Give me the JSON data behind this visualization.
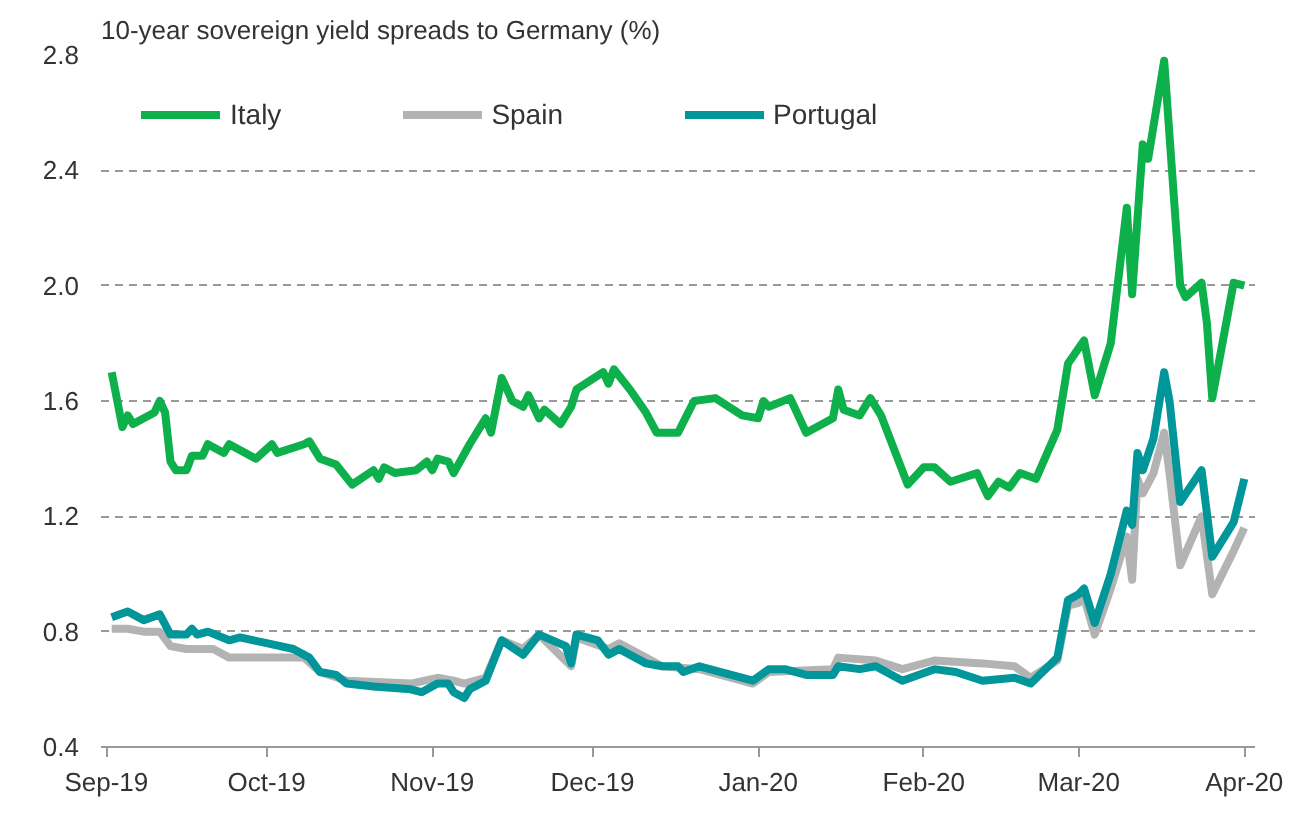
{
  "chart_data": {
    "type": "line",
    "title": "10-year sovereign  yield spreads to Germany  (%)",
    "xlim": [
      "2019-08-31",
      "2020-04-03"
    ],
    "xticks": [
      {
        "value": "2019-09-01",
        "label": "Sep-19"
      },
      {
        "value": "2019-10-01",
        "label": "Oct-19"
      },
      {
        "value": "2019-11-01",
        "label": "Nov-19"
      },
      {
        "value": "2019-12-01",
        "label": "Dec-19"
      },
      {
        "value": "2020-01-01",
        "label": "Jan-20"
      },
      {
        "value": "2020-02-01",
        "label": "Feb-20"
      },
      {
        "value": "2020-03-01",
        "label": "Mar-20"
      },
      {
        "value": "2020-04-01",
        "label": "Apr-20"
      }
    ],
    "ylim": [
      0.4,
      2.8
    ],
    "yticks": [
      {
        "value": 0.4,
        "label": "0.4"
      },
      {
        "value": 0.8,
        "label": "0.8"
      },
      {
        "value": 1.2,
        "label": "1.2"
      },
      {
        "value": 1.6,
        "label": "1.6"
      },
      {
        "value": 2.0,
        "label": "2.0"
      },
      {
        "value": 2.4,
        "label": "2.4"
      },
      {
        "value": 2.8,
        "label": "2.8"
      }
    ],
    "grid": "y",
    "legend": "top left",
    "marker": "none",
    "line_style": "solid",
    "series": [
      {
        "name": "Italy",
        "color": "#0db04b",
        "x": [
          "2019-09-02",
          "2019-09-04",
          "2019-09-05",
          "2019-09-06",
          "2019-09-10",
          "2019-09-11",
          "2019-09-12",
          "2019-09-13",
          "2019-09-14",
          "2019-09-16",
          "2019-09-17",
          "2019-09-19",
          "2019-09-20",
          "2019-09-23",
          "2019-09-24",
          "2019-09-29",
          "2019-10-02",
          "2019-10-03",
          "2019-10-08",
          "2019-10-09",
          "2019-10-11",
          "2019-10-14",
          "2019-10-17",
          "2019-10-21",
          "2019-10-22",
          "2019-10-23",
          "2019-10-25",
          "2019-10-29",
          "2019-10-31",
          "2019-11-01",
          "2019-11-02",
          "2019-11-04",
          "2019-11-05",
          "2019-11-08",
          "2019-11-11",
          "2019-11-12",
          "2019-11-14",
          "2019-11-16",
          "2019-11-18",
          "2019-11-19",
          "2019-11-21",
          "2019-11-22",
          "2019-11-25",
          "2019-11-27",
          "2019-11-28",
          "2019-12-03",
          "2019-12-04",
          "2019-12-05",
          "2019-12-08",
          "2019-12-11",
          "2019-12-13",
          "2019-12-17",
          "2019-12-20",
          "2019-12-24",
          "2019-12-29",
          "2020-01-01",
          "2020-01-02",
          "2020-01-03",
          "2020-01-07",
          "2020-01-10",
          "2020-01-15",
          "2020-01-16",
          "2020-01-17",
          "2020-01-20",
          "2020-01-22",
          "2020-01-24",
          "2020-01-29",
          "2020-02-01",
          "2020-02-03",
          "2020-02-06",
          "2020-02-11",
          "2020-02-13",
          "2020-02-15",
          "2020-02-17",
          "2020-02-19",
          "2020-02-22",
          "2020-02-26",
          "2020-02-28",
          "2020-03-02",
          "2020-03-04",
          "2020-03-07",
          "2020-03-10",
          "2020-03-11",
          "2020-03-13",
          "2020-03-14",
          "2020-03-17",
          "2020-03-20",
          "2020-03-21",
          "2020-03-24",
          "2020-03-25",
          "2020-03-26",
          "2020-03-28",
          "2020-03-30",
          "2020-04-01"
        ],
        "values": [
          1.7,
          1.51,
          1.55,
          1.52,
          1.56,
          1.6,
          1.56,
          1.39,
          1.36,
          1.36,
          1.41,
          1.41,
          1.45,
          1.42,
          1.45,
          1.4,
          1.45,
          1.42,
          1.45,
          1.46,
          1.4,
          1.38,
          1.31,
          1.36,
          1.33,
          1.37,
          1.35,
          1.36,
          1.39,
          1.36,
          1.4,
          1.39,
          1.35,
          1.45,
          1.54,
          1.49,
          1.68,
          1.6,
          1.58,
          1.62,
          1.54,
          1.57,
          1.52,
          1.58,
          1.64,
          1.7,
          1.66,
          1.71,
          1.64,
          1.56,
          1.49,
          1.49,
          1.6,
          1.61,
          1.55,
          1.54,
          1.6,
          1.58,
          1.61,
          1.49,
          1.54,
          1.64,
          1.57,
          1.55,
          1.61,
          1.55,
          1.31,
          1.37,
          1.37,
          1.32,
          1.35,
          1.27,
          1.32,
          1.3,
          1.35,
          1.33,
          1.5,
          1.73,
          1.81,
          1.62,
          1.8,
          2.27,
          1.97,
          2.49,
          2.44,
          2.78,
          2.0,
          1.96,
          2.01,
          1.87,
          1.61,
          1.81,
          2.01,
          2.0
        ]
      },
      {
        "name": "Spain",
        "color": "#b3b3b3",
        "x": [
          "2019-09-02",
          "2019-09-05",
          "2019-09-08",
          "2019-09-11",
          "2019-09-13",
          "2019-09-16",
          "2019-09-21",
          "2019-09-24",
          "2019-10-01",
          "2019-10-08",
          "2019-10-11",
          "2019-10-16",
          "2019-10-28",
          "2019-11-02",
          "2019-11-05",
          "2019-11-07",
          "2019-11-11",
          "2019-11-14",
          "2019-11-18",
          "2019-11-21",
          "2019-11-27",
          "2019-11-28",
          "2019-12-04",
          "2019-12-06",
          "2019-12-11",
          "2019-12-14",
          "2019-12-21",
          "2019-12-31",
          "2020-01-03",
          "2020-01-15",
          "2020-01-16",
          "2020-01-23",
          "2020-01-28",
          "2020-02-03",
          "2020-02-12",
          "2020-02-18",
          "2020-02-21",
          "2020-02-26",
          "2020-02-28",
          "2020-03-01",
          "2020-03-02",
          "2020-03-04",
          "2020-03-07",
          "2020-03-10",
          "2020-03-11",
          "2020-03-12",
          "2020-03-13",
          "2020-03-15",
          "2020-03-17",
          "2020-03-18",
          "2020-03-20",
          "2020-03-24",
          "2020-03-26",
          "2020-03-30",
          "2020-04-01"
        ],
        "values": [
          0.81,
          0.81,
          0.8,
          0.8,
          0.75,
          0.74,
          0.74,
          0.71,
          0.71,
          0.71,
          0.66,
          0.63,
          0.62,
          0.64,
          0.63,
          0.62,
          0.64,
          0.77,
          0.74,
          0.79,
          0.68,
          0.78,
          0.74,
          0.76,
          0.71,
          0.68,
          0.67,
          0.62,
          0.66,
          0.67,
          0.71,
          0.7,
          0.67,
          0.7,
          0.69,
          0.68,
          0.64,
          0.7,
          0.89,
          0.9,
          0.92,
          0.79,
          0.95,
          1.13,
          0.98,
          1.33,
          1.28,
          1.35,
          1.49,
          1.35,
          1.03,
          1.2,
          0.93,
          1.08,
          1.16
        ]
      },
      {
        "name": "Portugal",
        "color": "#00969a",
        "x": [
          "2019-09-02",
          "2019-09-05",
          "2019-09-08",
          "2019-09-11",
          "2019-09-13",
          "2019-09-16",
          "2019-09-17",
          "2019-09-18",
          "2019-09-20",
          "2019-09-24",
          "2019-09-26",
          "2019-10-01",
          "2019-10-06",
          "2019-10-09",
          "2019-10-11",
          "2019-10-14",
          "2019-10-16",
          "2019-10-21",
          "2019-10-28",
          "2019-10-30",
          "2019-11-02",
          "2019-11-04",
          "2019-11-05",
          "2019-11-07",
          "2019-11-08",
          "2019-11-11",
          "2019-11-14",
          "2019-11-18",
          "2019-11-21",
          "2019-11-26",
          "2019-11-27",
          "2019-11-28",
          "2019-12-02",
          "2019-12-04",
          "2019-12-06",
          "2019-12-11",
          "2019-12-14",
          "2019-12-17",
          "2019-12-18",
          "2019-12-21",
          "2019-12-31",
          "2020-01-03",
          "2020-01-06",
          "2020-01-10",
          "2020-01-15",
          "2020-01-16",
          "2020-01-20",
          "2020-01-23",
          "2020-01-28",
          "2020-02-03",
          "2020-02-07",
          "2020-02-12",
          "2020-02-18",
          "2020-02-21",
          "2020-02-26",
          "2020-02-28",
          "2020-03-01",
          "2020-03-02",
          "2020-03-04",
          "2020-03-07",
          "2020-03-10",
          "2020-03-11",
          "2020-03-12",
          "2020-03-13",
          "2020-03-15",
          "2020-03-17",
          "2020-03-18",
          "2020-03-20",
          "2020-03-24",
          "2020-03-26",
          "2020-03-30",
          "2020-04-01"
        ],
        "values": [
          0.85,
          0.87,
          0.84,
          0.86,
          0.79,
          0.79,
          0.81,
          0.79,
          0.8,
          0.77,
          0.78,
          0.76,
          0.74,
          0.71,
          0.66,
          0.65,
          0.62,
          0.61,
          0.6,
          0.59,
          0.62,
          0.62,
          0.59,
          0.57,
          0.6,
          0.63,
          0.77,
          0.72,
          0.79,
          0.75,
          0.69,
          0.79,
          0.77,
          0.72,
          0.74,
          0.69,
          0.68,
          0.68,
          0.66,
          0.68,
          0.63,
          0.67,
          0.67,
          0.65,
          0.65,
          0.68,
          0.67,
          0.68,
          0.63,
          0.67,
          0.66,
          0.63,
          0.64,
          0.62,
          0.71,
          0.91,
          0.93,
          0.95,
          0.83,
          1.0,
          1.22,
          1.17,
          1.42,
          1.36,
          1.47,
          1.7,
          1.6,
          1.25,
          1.36,
          1.06,
          1.18,
          1.33
        ]
      }
    ]
  }
}
